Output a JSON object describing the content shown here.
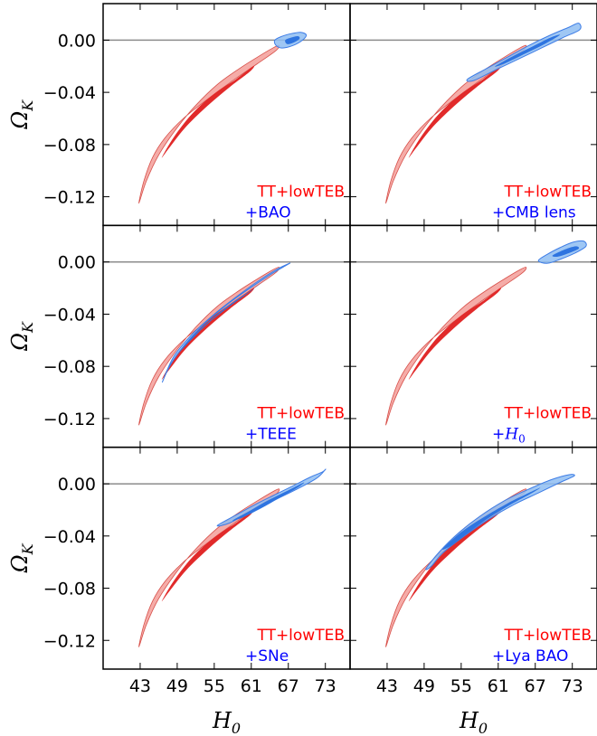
{
  "colors": {
    "baseline": "#F4A39E",
    "baseline_inner": "#E12A2A",
    "baseline_edge": "#D7504A",
    "combined": "#8EBDF2",
    "combined_inner": "#2E74E0",
    "combined_edge": "#3E7DE6",
    "label_red": "#FF0000",
    "label_blue": "#0000FF",
    "zero_line": "#8C8C8C"
  },
  "chart_data": {
    "type": "contour",
    "layout": "3x2 grid of panels sharing axes",
    "xlabel_base": "H",
    "xlabel_sub": "0",
    "ylabel_base": "Ω",
    "ylabel_sub": "K",
    "xlim": [
      37,
      77
    ],
    "ylim": [
      -0.142,
      0.028
    ],
    "xticks": [
      "43",
      "49",
      "55",
      "61",
      "67",
      "73"
    ],
    "xtick_values": [
      43,
      49,
      55,
      61,
      67,
      73
    ],
    "yticks": [
      "0.00",
      "−0.04",
      "−0.08",
      "−0.12"
    ],
    "ytick_values": [
      0.0,
      -0.04,
      -0.08,
      -0.12
    ],
    "reference_line": {
      "omega_k": 0.0
    },
    "baseline_label": "TT+lowTEB",
    "baseline_contours": {
      "outer_95": [
        [
          42.8,
          -0.125
        ],
        [
          44.0,
          -0.108
        ],
        [
          46.0,
          -0.088
        ],
        [
          49.0,
          -0.067
        ],
        [
          52.0,
          -0.05
        ],
        [
          55.5,
          -0.034
        ],
        [
          59.0,
          -0.022
        ],
        [
          62.0,
          -0.013
        ],
        [
          64.5,
          -0.006
        ],
        [
          65.5,
          -0.004
        ],
        [
          65.0,
          -0.008
        ],
        [
          62.0,
          -0.018
        ],
        [
          58.0,
          -0.031
        ],
        [
          54.0,
          -0.045
        ],
        [
          50.0,
          -0.06
        ],
        [
          47.0,
          -0.075
        ],
        [
          45.0,
          -0.09
        ],
        [
          43.6,
          -0.108
        ]
      ],
      "inner_68": [
        [
          46.5,
          -0.09
        ],
        [
          48.5,
          -0.074
        ],
        [
          51.5,
          -0.056
        ],
        [
          55.0,
          -0.041
        ],
        [
          58.5,
          -0.03
        ],
        [
          61.3,
          -0.02
        ],
        [
          60.8,
          -0.024
        ],
        [
          57.5,
          -0.036
        ],
        [
          54.0,
          -0.05
        ],
        [
          50.5,
          -0.066
        ],
        [
          47.8,
          -0.082
        ]
      ]
    },
    "panels": [
      {
        "name": "+BAO",
        "outer_95": [
          [
            64.8,
            0.0
          ],
          [
            66.0,
            0.003
          ],
          [
            67.5,
            0.005
          ],
          [
            69.0,
            0.006
          ],
          [
            69.9,
            0.004
          ],
          [
            69.3,
            0.0
          ],
          [
            67.8,
            -0.004
          ],
          [
            66.0,
            -0.006
          ],
          [
            65.0,
            -0.004
          ]
        ],
        "inner_68": [
          [
            66.5,
            0.0
          ],
          [
            67.5,
            0.002
          ],
          [
            68.6,
            0.003
          ],
          [
            68.8,
            0.001
          ],
          [
            67.8,
            -0.002
          ],
          [
            66.8,
            -0.003
          ]
        ]
      },
      {
        "name": "+CMB lens",
        "outer_95": [
          [
            56.0,
            -0.03
          ],
          [
            59.0,
            -0.022
          ],
          [
            62.5,
            -0.013
          ],
          [
            66.0,
            -0.004
          ],
          [
            69.5,
            0.004
          ],
          [
            72.5,
            0.01
          ],
          [
            74.0,
            0.013
          ],
          [
            74.2,
            0.008
          ],
          [
            71.5,
            0.002
          ],
          [
            68.0,
            -0.006
          ],
          [
            64.5,
            -0.014
          ],
          [
            60.5,
            -0.023
          ],
          [
            57.0,
            -0.031
          ]
        ],
        "inner_68": [
          [
            60.5,
            -0.02
          ],
          [
            63.5,
            -0.012
          ],
          [
            66.5,
            -0.005
          ],
          [
            69.5,
            0.002
          ],
          [
            71.0,
            0.004
          ],
          [
            68.5,
            -0.003
          ],
          [
            65.5,
            -0.01
          ],
          [
            62.0,
            -0.018
          ]
        ]
      },
      {
        "name": "+TEEE",
        "outer_95": [
          [
            46.6,
            -0.092
          ],
          [
            48.0,
            -0.078
          ],
          [
            50.5,
            -0.062
          ],
          [
            53.5,
            -0.047
          ],
          [
            57.0,
            -0.033
          ],
          [
            60.5,
            -0.021
          ],
          [
            64.0,
            -0.01
          ],
          [
            66.5,
            -0.003
          ],
          [
            67.2,
            -0.001
          ],
          [
            65.0,
            -0.006
          ],
          [
            62.0,
            -0.015
          ],
          [
            58.5,
            -0.027
          ],
          [
            55.0,
            -0.04
          ],
          [
            51.5,
            -0.055
          ],
          [
            48.5,
            -0.072
          ]
        ],
        "inner_68": [
          [
            49.2,
            -0.07
          ],
          [
            51.5,
            -0.057
          ],
          [
            54.5,
            -0.044
          ],
          [
            58.0,
            -0.031
          ],
          [
            61.5,
            -0.02
          ],
          [
            63.8,
            -0.012
          ],
          [
            61.0,
            -0.022
          ],
          [
            57.5,
            -0.034
          ],
          [
            54.0,
            -0.047
          ],
          [
            51.0,
            -0.061
          ]
        ]
      },
      {
        "name": "+H_0",
        "label_plain": "+",
        "label_math": "H",
        "label_sub": "0",
        "outer_95": [
          [
            67.5,
            0.001
          ],
          [
            69.0,
            0.006
          ],
          [
            71.0,
            0.011
          ],
          [
            73.0,
            0.015
          ],
          [
            74.8,
            0.016
          ],
          [
            75.2,
            0.012
          ],
          [
            73.5,
            0.007
          ],
          [
            71.0,
            0.002
          ],
          [
            69.0,
            -0.001
          ]
        ],
        "inner_68": [
          [
            69.8,
            0.005
          ],
          [
            71.5,
            0.009
          ],
          [
            73.5,
            0.012
          ],
          [
            74.0,
            0.01
          ],
          [
            72.0,
            0.006
          ],
          [
            70.5,
            0.004
          ]
        ]
      },
      {
        "name": "+SNe",
        "outer_95": [
          [
            55.5,
            -0.032
          ],
          [
            58.5,
            -0.024
          ],
          [
            62.0,
            -0.015
          ],
          [
            65.0,
            -0.008
          ],
          [
            68.0,
            -0.001
          ],
          [
            70.5,
            0.005
          ],
          [
            72.5,
            0.009
          ],
          [
            73.0,
            0.011
          ],
          [
            71.5,
            0.004
          ],
          [
            68.0,
            -0.005
          ],
          [
            64.5,
            -0.013
          ],
          [
            61.0,
            -0.021
          ],
          [
            57.5,
            -0.03
          ]
        ],
        "inner_68": [
          [
            58.0,
            -0.028
          ],
          [
            61.0,
            -0.02
          ],
          [
            64.0,
            -0.012
          ],
          [
            67.0,
            -0.005
          ],
          [
            69.5,
            0.001
          ],
          [
            68.5,
            -0.003
          ],
          [
            65.5,
            -0.011
          ],
          [
            62.5,
            -0.019
          ],
          [
            59.5,
            -0.026
          ]
        ]
      },
      {
        "name": "+Lya BAO",
        "outer_95": [
          [
            49.3,
            -0.065
          ],
          [
            51.5,
            -0.052
          ],
          [
            54.5,
            -0.038
          ],
          [
            58.0,
            -0.025
          ],
          [
            62.0,
            -0.013
          ],
          [
            66.0,
            -0.004
          ],
          [
            69.5,
            0.003
          ],
          [
            72.5,
            0.007
          ],
          [
            73.3,
            0.006
          ],
          [
            71.0,
            0.001
          ],
          [
            67.5,
            -0.007
          ],
          [
            63.5,
            -0.016
          ],
          [
            59.5,
            -0.027
          ],
          [
            55.5,
            -0.04
          ],
          [
            52.0,
            -0.053
          ],
          [
            50.2,
            -0.063
          ]
        ],
        "inner_68": [
          [
            52.0,
            -0.05
          ],
          [
            55.0,
            -0.037
          ],
          [
            58.5,
            -0.026
          ],
          [
            62.5,
            -0.015
          ],
          [
            65.5,
            -0.008
          ],
          [
            67.8,
            -0.003
          ],
          [
            66.5,
            -0.007
          ],
          [
            63.0,
            -0.016
          ],
          [
            59.5,
            -0.026
          ],
          [
            56.0,
            -0.038
          ],
          [
            53.5,
            -0.047
          ]
        ]
      }
    ]
  }
}
